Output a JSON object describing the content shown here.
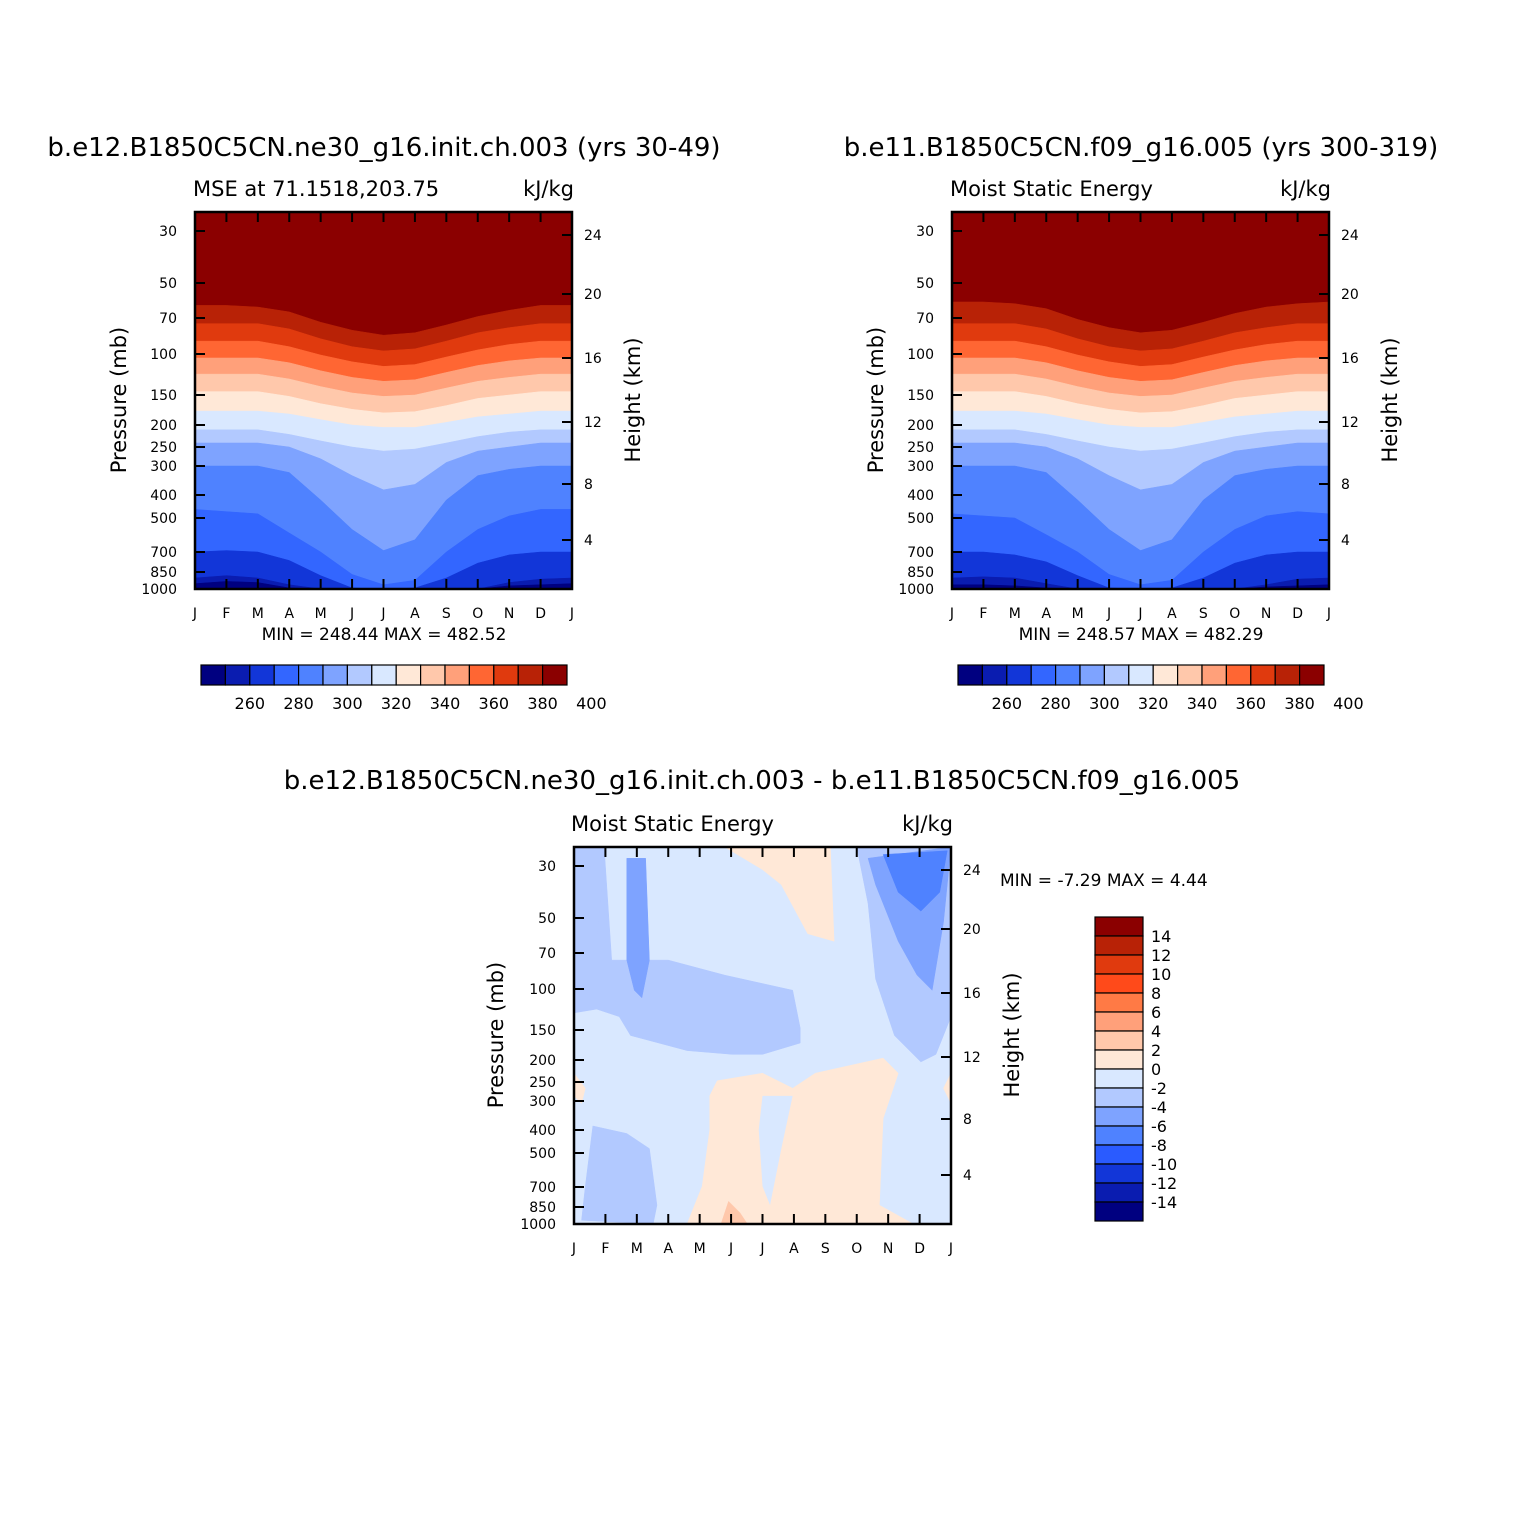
{
  "chart_data": [
    {
      "type": "heatmap",
      "title": "b.e12.B1850C5CN.ne30_g16.init.ch.003 (yrs 30-49)",
      "subtitle_left": "MSE at 71.1518,203.75",
      "subtitle_right": "kJ/kg",
      "ylabel": "Pressure (mb)",
      "ylabel_right": "Height (km)",
      "x_ticks": [
        "J",
        "F",
        "M",
        "A",
        "M",
        "J",
        "J",
        "A",
        "S",
        "O",
        "N",
        "D",
        "J"
      ],
      "y_ticks_pressure": [
        30,
        50,
        70,
        100,
        150,
        200,
        250,
        300,
        400,
        500,
        700,
        850,
        1000
      ],
      "y_ticks_height": [
        24,
        20,
        16,
        12,
        8,
        4
      ],
      "min_max_text": "MIN = 248.44 MAX = 482.52",
      "colorbar_labels": [
        "260",
        "280",
        "300",
        "320",
        "340",
        "360",
        "380",
        "400"
      ],
      "approx_profile_months": [
        "J",
        "F",
        "M",
        "A",
        "M",
        "J",
        "J",
        "A",
        "S",
        "O",
        "N",
        "D",
        "J"
      ],
      "boundary_pressures_mb": [
        [
          950,
          930,
          940,
          990,
          1000,
          1000,
          1000,
          1000,
          1000,
          1000,
          970,
          960,
          950
        ],
        [
          900,
          880,
          900,
          960,
          1000,
          1000,
          1000,
          1000,
          1000,
          1000,
          940,
          910,
          900
        ],
        [
          700,
          690,
          700,
          760,
          880,
          990,
          1000,
          990,
          900,
          780,
          720,
          700,
          700
        ],
        [
          460,
          470,
          480,
          580,
          700,
          870,
          960,
          920,
          700,
          560,
          490,
          460,
          460
        ],
        [
          300,
          300,
          300,
          320,
          420,
          560,
          690,
          620,
          420,
          330,
          310,
          300,
          300
        ],
        [
          240,
          240,
          240,
          250,
          280,
          330,
          380,
          360,
          290,
          260,
          250,
          240,
          240
        ],
        [
          210,
          210,
          210,
          220,
          235,
          250,
          260,
          255,
          240,
          225,
          215,
          210,
          210
        ],
        [
          175,
          175,
          175,
          180,
          190,
          200,
          205,
          205,
          195,
          185,
          180,
          175,
          175
        ],
        [
          145,
          145,
          145,
          152,
          163,
          172,
          178,
          176,
          166,
          155,
          150,
          145,
          145
        ],
        [
          122,
          122,
          122,
          128,
          138,
          147,
          152,
          150,
          140,
          131,
          126,
          122,
          122
        ],
        [
          104,
          104,
          104,
          109,
          118,
          126,
          131,
          129,
          120,
          112,
          107,
          104,
          104
        ],
        [
          88,
          88,
          88,
          93,
          101,
          108,
          113,
          111,
          103,
          96,
          91,
          88,
          88
        ],
        [
          74,
          74,
          74,
          78,
          86,
          93,
          97,
          95,
          88,
          81,
          77,
          74,
          74
        ],
        [
          62,
          62,
          63,
          66,
          73,
          79,
          83,
          81,
          75,
          69,
          65,
          62,
          62
        ]
      ]
    },
    {
      "type": "heatmap",
      "title": "b.e11.B1850C5CN.f09_g16.005 (yrs 300-319)",
      "subtitle_left": "Moist Static Energy",
      "subtitle_right": "kJ/kg",
      "ylabel": "Pressure (mb)",
      "ylabel_right": "Height (km)",
      "x_ticks": [
        "J",
        "F",
        "M",
        "A",
        "M",
        "J",
        "J",
        "A",
        "S",
        "O",
        "N",
        "D",
        "J"
      ],
      "y_ticks_pressure": [
        30,
        50,
        70,
        100,
        150,
        200,
        250,
        300,
        400,
        500,
        700,
        850,
        1000
      ],
      "y_ticks_height": [
        24,
        20,
        16,
        12,
        8,
        4
      ],
      "min_max_text": "MIN = 248.57 MAX = 482.29",
      "colorbar_labels": [
        "260",
        "280",
        "300",
        "320",
        "340",
        "360",
        "380",
        "400"
      ],
      "approx_profile_months": [
        "J",
        "F",
        "M",
        "A",
        "M",
        "J",
        "J",
        "A",
        "S",
        "O",
        "N",
        "D",
        "J"
      ],
      "boundary_pressures_mb": [
        [
          960,
          960,
          970,
          990,
          1000,
          1000,
          1000,
          1000,
          1000,
          1000,
          980,
          970,
          960
        ],
        [
          900,
          890,
          900,
          950,
          1000,
          1000,
          1000,
          1000,
          1000,
          1000,
          960,
          910,
          900
        ],
        [
          700,
          700,
          720,
          770,
          880,
          990,
          1000,
          990,
          900,
          780,
          720,
          700,
          700
        ],
        [
          480,
          490,
          500,
          590,
          700,
          870,
          960,
          920,
          700,
          560,
          490,
          470,
          480
        ],
        [
          300,
          300,
          300,
          320,
          420,
          560,
          690,
          620,
          420,
          330,
          310,
          300,
          300
        ],
        [
          240,
          240,
          240,
          250,
          280,
          330,
          380,
          360,
          290,
          260,
          250,
          240,
          240
        ],
        [
          210,
          210,
          210,
          220,
          235,
          250,
          260,
          255,
          240,
          225,
          215,
          210,
          210
        ],
        [
          175,
          175,
          175,
          180,
          190,
          200,
          205,
          205,
          195,
          185,
          180,
          175,
          175
        ],
        [
          145,
          145,
          145,
          152,
          163,
          172,
          178,
          176,
          166,
          155,
          150,
          145,
          145
        ],
        [
          122,
          122,
          122,
          128,
          138,
          147,
          152,
          150,
          140,
          131,
          126,
          122,
          122
        ],
        [
          104,
          104,
          104,
          109,
          118,
          126,
          131,
          129,
          120,
          112,
          107,
          104,
          104
        ],
        [
          88,
          88,
          88,
          93,
          101,
          108,
          113,
          111,
          103,
          96,
          91,
          88,
          88
        ],
        [
          74,
          74,
          74,
          78,
          86,
          93,
          97,
          95,
          88,
          81,
          77,
          74,
          74
        ],
        [
          60,
          60,
          61,
          64,
          71,
          77,
          81,
          79,
          73,
          67,
          63,
          61,
          60
        ]
      ]
    },
    {
      "type": "heatmap",
      "title": "b.e12.B1850C5CN.ne30_g16.init.ch.003 - b.e11.B1850C5CN.f09_g16.005",
      "subtitle_left": "Moist Static Energy",
      "subtitle_right": "kJ/kg",
      "ylabel": "Pressure (mb)",
      "ylabel_right": "Height (km)",
      "x_ticks": [
        "J",
        "F",
        "M",
        "A",
        "M",
        "J",
        "J",
        "A",
        "S",
        "O",
        "N",
        "D",
        "J"
      ],
      "y_ticks_pressure": [
        30,
        50,
        70,
        100,
        150,
        200,
        250,
        300,
        400,
        500,
        700,
        850,
        1000
      ],
      "y_ticks_height": [
        24,
        20,
        16,
        12,
        8,
        4
      ],
      "min_max_text": "MIN = -7.29 MAX = 4.44",
      "colorbar_labels": [
        "14",
        "12",
        "10",
        "8",
        "6",
        "4",
        "2",
        "0",
        "-2",
        "-4",
        "-6",
        "-8",
        "-10",
        "-12",
        "-14"
      ],
      "background_range": "-2 to 0",
      "regions": [
        {
          "range": "-4 to -2",
          "desc": "upper troposphere band Jan-Jul near 100-200 mb and Oct-Dec column"
        },
        {
          "range": "-6 to -4",
          "desc": "Feb-Mar stratosphere strip and Nov-Dec above 70 mb"
        },
        {
          "range": "-8 to -6",
          "desc": "Nov-Dec near 30 mb"
        },
        {
          "range": "0 to 2",
          "desc": "May-Oct lower troposphere below 250 mb and Jun-Aug near 30 mb"
        },
        {
          "range": "2 to 4",
          "desc": "small patch Jun near surface"
        }
      ]
    }
  ],
  "colors": {
    "cmap_full": [
      "#000080",
      "#0a1cb0",
      "#1236d8",
      "#3366ff",
      "#4f82ff",
      "#7ea3ff",
      "#b2c9ff",
      "#d9e8ff",
      "#ffe8d7",
      "#ffc8ab",
      "#ffa07a",
      "#ff6633",
      "#e03a0e",
      "#b82206",
      "#8b0000"
    ],
    "cmap_diff": [
      "#8b0000",
      "#b82206",
      "#e03a0e",
      "#ff4a1a",
      "#ff7a45",
      "#ffa07a",
      "#ffc8ab",
      "#ffe8d7",
      "#d9e8ff",
      "#b2c9ff",
      "#7ea3ff",
      "#4f82ff",
      "#2a5bff",
      "#1236d8",
      "#0a1cb0",
      "#000080"
    ]
  }
}
